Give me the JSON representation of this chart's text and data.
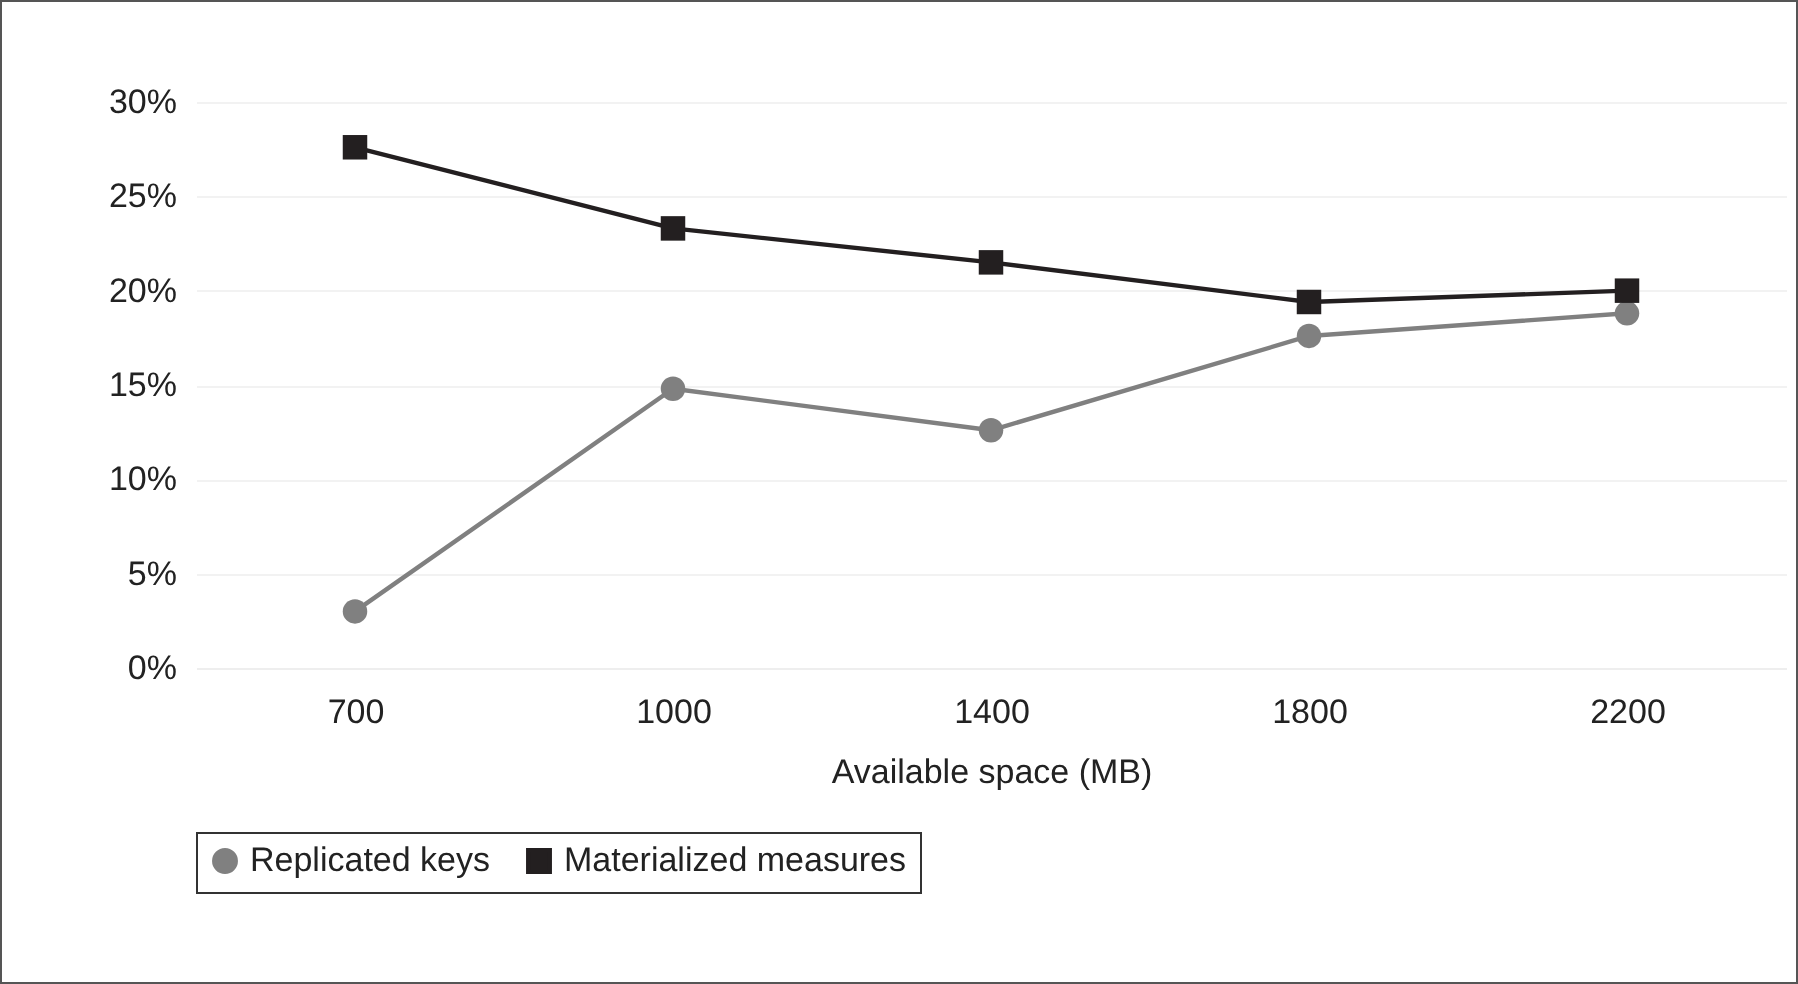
{
  "chart_data": {
    "type": "line",
    "xlabel": "Available space (MB)",
    "categories": [
      "700",
      "1000",
      "1400",
      "1800",
      "2200"
    ],
    "series": [
      {
        "name": "Replicated keys",
        "color": "#808080",
        "marker": "circle",
        "values": [
          3.0,
          14.8,
          12.6,
          17.6,
          18.8
        ]
      },
      {
        "name": "Materialized measures",
        "color": "#231f20",
        "marker": "square",
        "values": [
          27.6,
          23.3,
          21.5,
          19.4,
          20.0
        ]
      }
    ],
    "ylim": [
      0,
      30
    ],
    "yticks": [
      {
        "value": 0,
        "label": "0%"
      },
      {
        "value": 5,
        "label": "5%"
      },
      {
        "value": 10,
        "label": "10%"
      },
      {
        "value": 15,
        "label": "15%"
      },
      {
        "value": 20,
        "label": "20%"
      },
      {
        "value": 25,
        "label": "25%"
      },
      {
        "value": 30,
        "label": "30%"
      }
    ],
    "grid": "y",
    "legend": "bottom",
    "line_style": "solid"
  }
}
